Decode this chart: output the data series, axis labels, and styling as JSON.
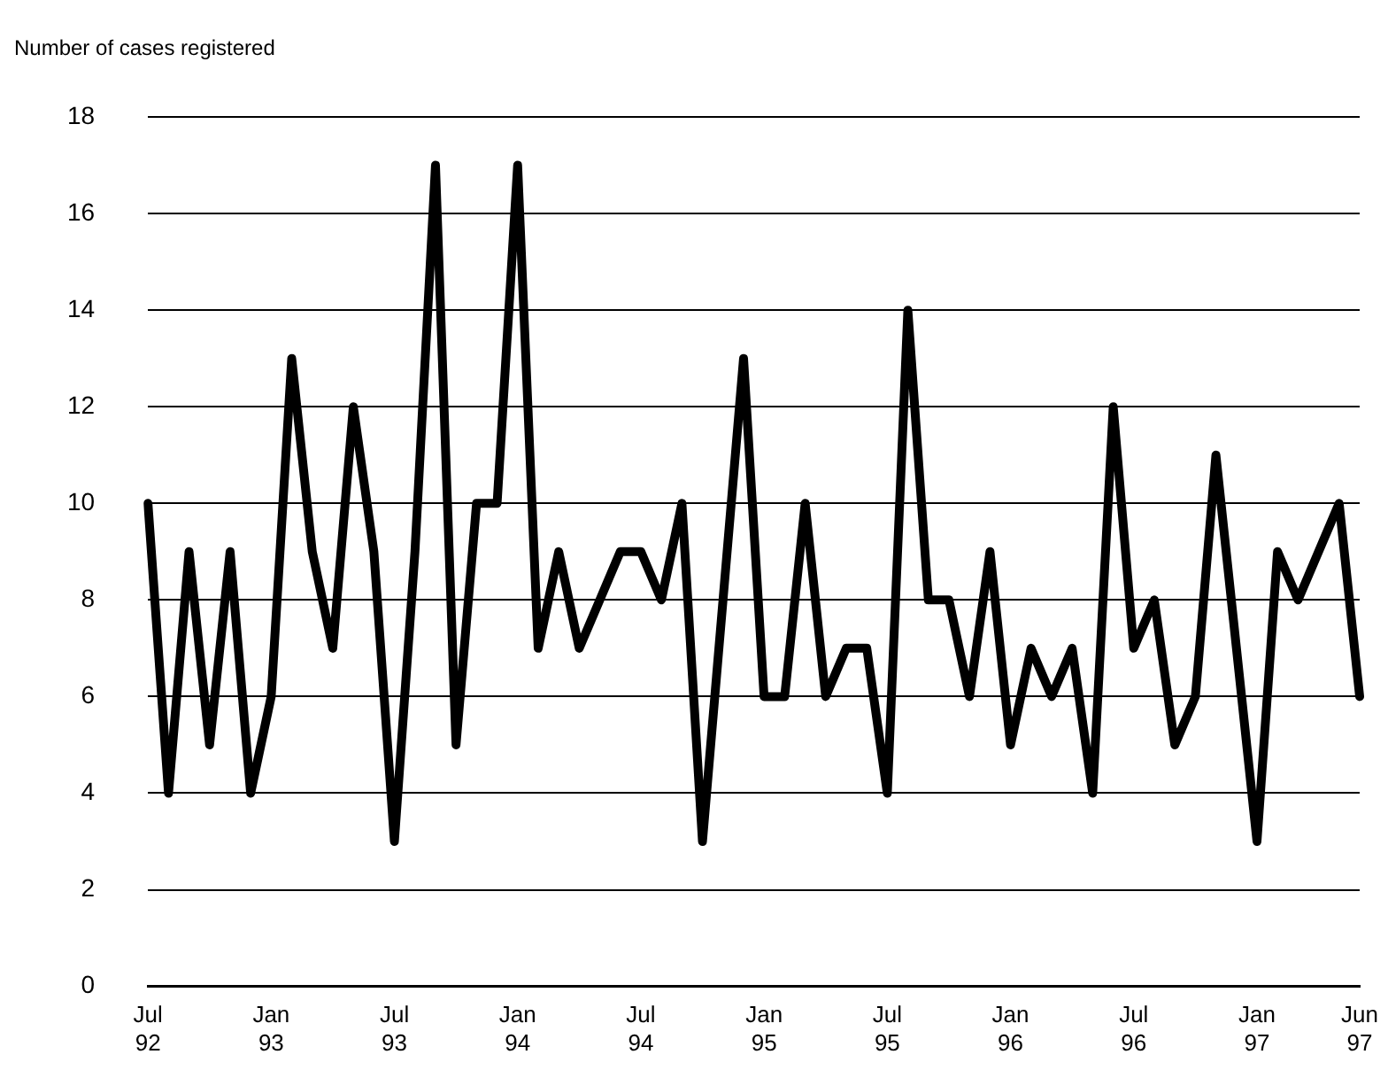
{
  "chart_data": {
    "type": "line",
    "ylabel": "Number of cases registered",
    "categories": [
      "Jul 92",
      null,
      null,
      null,
      null,
      null,
      "Jan 93",
      null,
      null,
      null,
      null,
      null,
      "Jul 93",
      null,
      null,
      null,
      null,
      null,
      "Jan 94",
      null,
      null,
      null,
      null,
      null,
      "Jul 94",
      null,
      null,
      null,
      null,
      null,
      "Jan 95",
      null,
      null,
      null,
      null,
      null,
      "Jul 95",
      null,
      null,
      null,
      null,
      null,
      "Jan 96",
      null,
      null,
      null,
      null,
      null,
      "Jul 96",
      null,
      null,
      null,
      null,
      null,
      "Jan 97",
      null,
      null,
      null,
      null,
      "Jun 97"
    ],
    "series": [
      {
        "color": "#000000",
        "values": [
          10,
          4,
          9,
          5,
          9,
          4,
          6,
          13,
          9,
          7,
          12,
          9,
          3,
          9,
          17,
          5,
          10,
          10,
          17,
          7,
          9,
          7,
          8,
          9,
          9,
          8,
          10,
          3,
          8,
          13,
          6,
          6,
          10,
          6,
          7,
          7,
          4,
          14,
          8,
          8,
          6,
          9,
          5,
          7,
          6,
          7,
          4,
          12,
          7,
          8,
          5,
          6,
          11,
          7,
          3,
          9,
          8,
          9,
          10,
          6
        ]
      }
    ],
    "ylim": [
      0,
      18
    ],
    "yticks": [
      0,
      2,
      4,
      6,
      8,
      10,
      12,
      14,
      16,
      18
    ],
    "grid": "y",
    "legend": false,
    "marker": "none",
    "line_style": "solid"
  }
}
